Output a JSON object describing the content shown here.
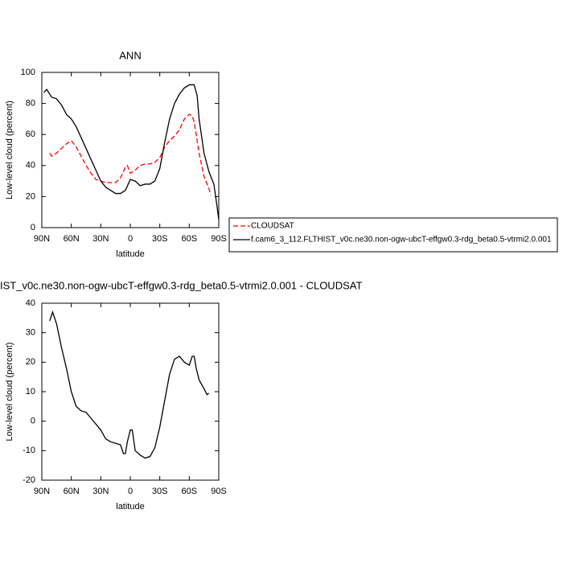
{
  "chart_data": [
    {
      "type": "line",
      "title": "ANN",
      "xlabel": "latitude",
      "ylabel": "Low-level cloud (percent)",
      "xlim": [
        90,
        -90
      ],
      "ylim": [
        0,
        100
      ],
      "xticks": [
        {
          "value": 90,
          "label": "90N"
        },
        {
          "value": 60,
          "label": "60N"
        },
        {
          "value": 30,
          "label": "30N"
        },
        0,
        {
          "value": -30,
          "label": "30S"
        },
        {
          "value": -60,
          "label": "60S"
        },
        {
          "value": -90,
          "label": "90S"
        }
      ],
      "yticks": [
        0,
        20,
        40,
        60,
        80,
        100
      ],
      "legend": "right",
      "series": [
        {
          "name": "CLOUDSAT",
          "color": "#ff0000",
          "style": "dashed",
          "x": [
            82,
            80,
            75,
            70,
            65,
            60,
            55,
            50,
            45,
            40,
            35,
            30,
            25,
            20,
            15,
            10,
            5,
            3,
            0,
            -5,
            -10,
            -15,
            -20,
            -25,
            -30,
            -35,
            -40,
            -45,
            -50,
            -55,
            -60,
            -63,
            -65,
            -70,
            -75,
            -80,
            -82
          ],
          "values": [
            48,
            46,
            48,
            51,
            54,
            56,
            52,
            46,
            40,
            35,
            31,
            30,
            29,
            29,
            29,
            32,
            39,
            40,
            35,
            37,
            40,
            41,
            41,
            42,
            45,
            52,
            56,
            59,
            63,
            70,
            73,
            72,
            68,
            48,
            33,
            25,
            21
          ]
        },
        {
          "name": "f.cam6_3_112.FLTHIST_v0c.ne30.non-ogw-ubcT-effgw0.3-rdg_beta0.5-vtrmi2.0.001",
          "color": "#000000",
          "style": "solid",
          "x": [
            88,
            85,
            80,
            75,
            70,
            65,
            60,
            55,
            50,
            45,
            40,
            35,
            30,
            25,
            20,
            15,
            10,
            5,
            0,
            -5,
            -10,
            -15,
            -20,
            -25,
            -30,
            -35,
            -40,
            -45,
            -50,
            -55,
            -60,
            -65,
            -68,
            -70,
            -75,
            -80,
            -85,
            -88,
            -90
          ],
          "values": [
            87,
            89,
            84,
            83,
            79,
            73,
            70,
            65,
            58,
            51,
            44,
            37,
            30,
            26,
            24,
            22,
            22,
            24,
            31,
            30,
            27,
            28,
            28,
            30,
            38,
            55,
            70,
            80,
            86,
            90,
            92,
            92,
            85,
            70,
            48,
            36,
            28,
            15,
            5
          ]
        }
      ]
    },
    {
      "type": "line",
      "title": "IST_v0c.ne30.non-ogw-ubcT-effgw0.3-rdg_beta0.5-vtrmi2.0.001 - CLOUDSAT",
      "xlabel": "latitude",
      "ylabel": "Low-level cloud (percent)",
      "xlim": [
        90,
        -90
      ],
      "ylim": [
        -20,
        40
      ],
      "xticks": [
        {
          "value": 90,
          "label": "90N"
        },
        {
          "value": 60,
          "label": "60N"
        },
        {
          "value": 30,
          "label": "30N"
        },
        0,
        {
          "value": -30,
          "label": "30S"
        },
        {
          "value": -60,
          "label": "60S"
        },
        {
          "value": -90,
          "label": "90S"
        }
      ],
      "yticks": [
        -20,
        -10,
        0,
        10,
        20,
        30,
        40
      ],
      "series": [
        {
          "color": "#000000",
          "style": "solid",
          "x": [
            82,
            79,
            75,
            70,
            65,
            60,
            55,
            50,
            45,
            40,
            35,
            30,
            25,
            20,
            15,
            10,
            7,
            5,
            3,
            0,
            -2,
            -5,
            -10,
            -15,
            -20,
            -25,
            -30,
            -35,
            -40,
            -45,
            -50,
            -55,
            -60,
            -63,
            -65,
            -67,
            -70,
            -75,
            -78,
            -80
          ],
          "values": [
            34,
            37,
            33,
            25,
            18,
            10,
            5,
            3.5,
            3,
            1,
            -1,
            -3,
            -6,
            -7,
            -7.5,
            -8,
            -11,
            -11,
            -7,
            -3,
            -3,
            -10,
            -11.5,
            -12.5,
            -12,
            -9,
            -2,
            7,
            16,
            21,
            22,
            20,
            19,
            22,
            22,
            18,
            14,
            11,
            9,
            9.5
          ]
        }
      ]
    }
  ]
}
